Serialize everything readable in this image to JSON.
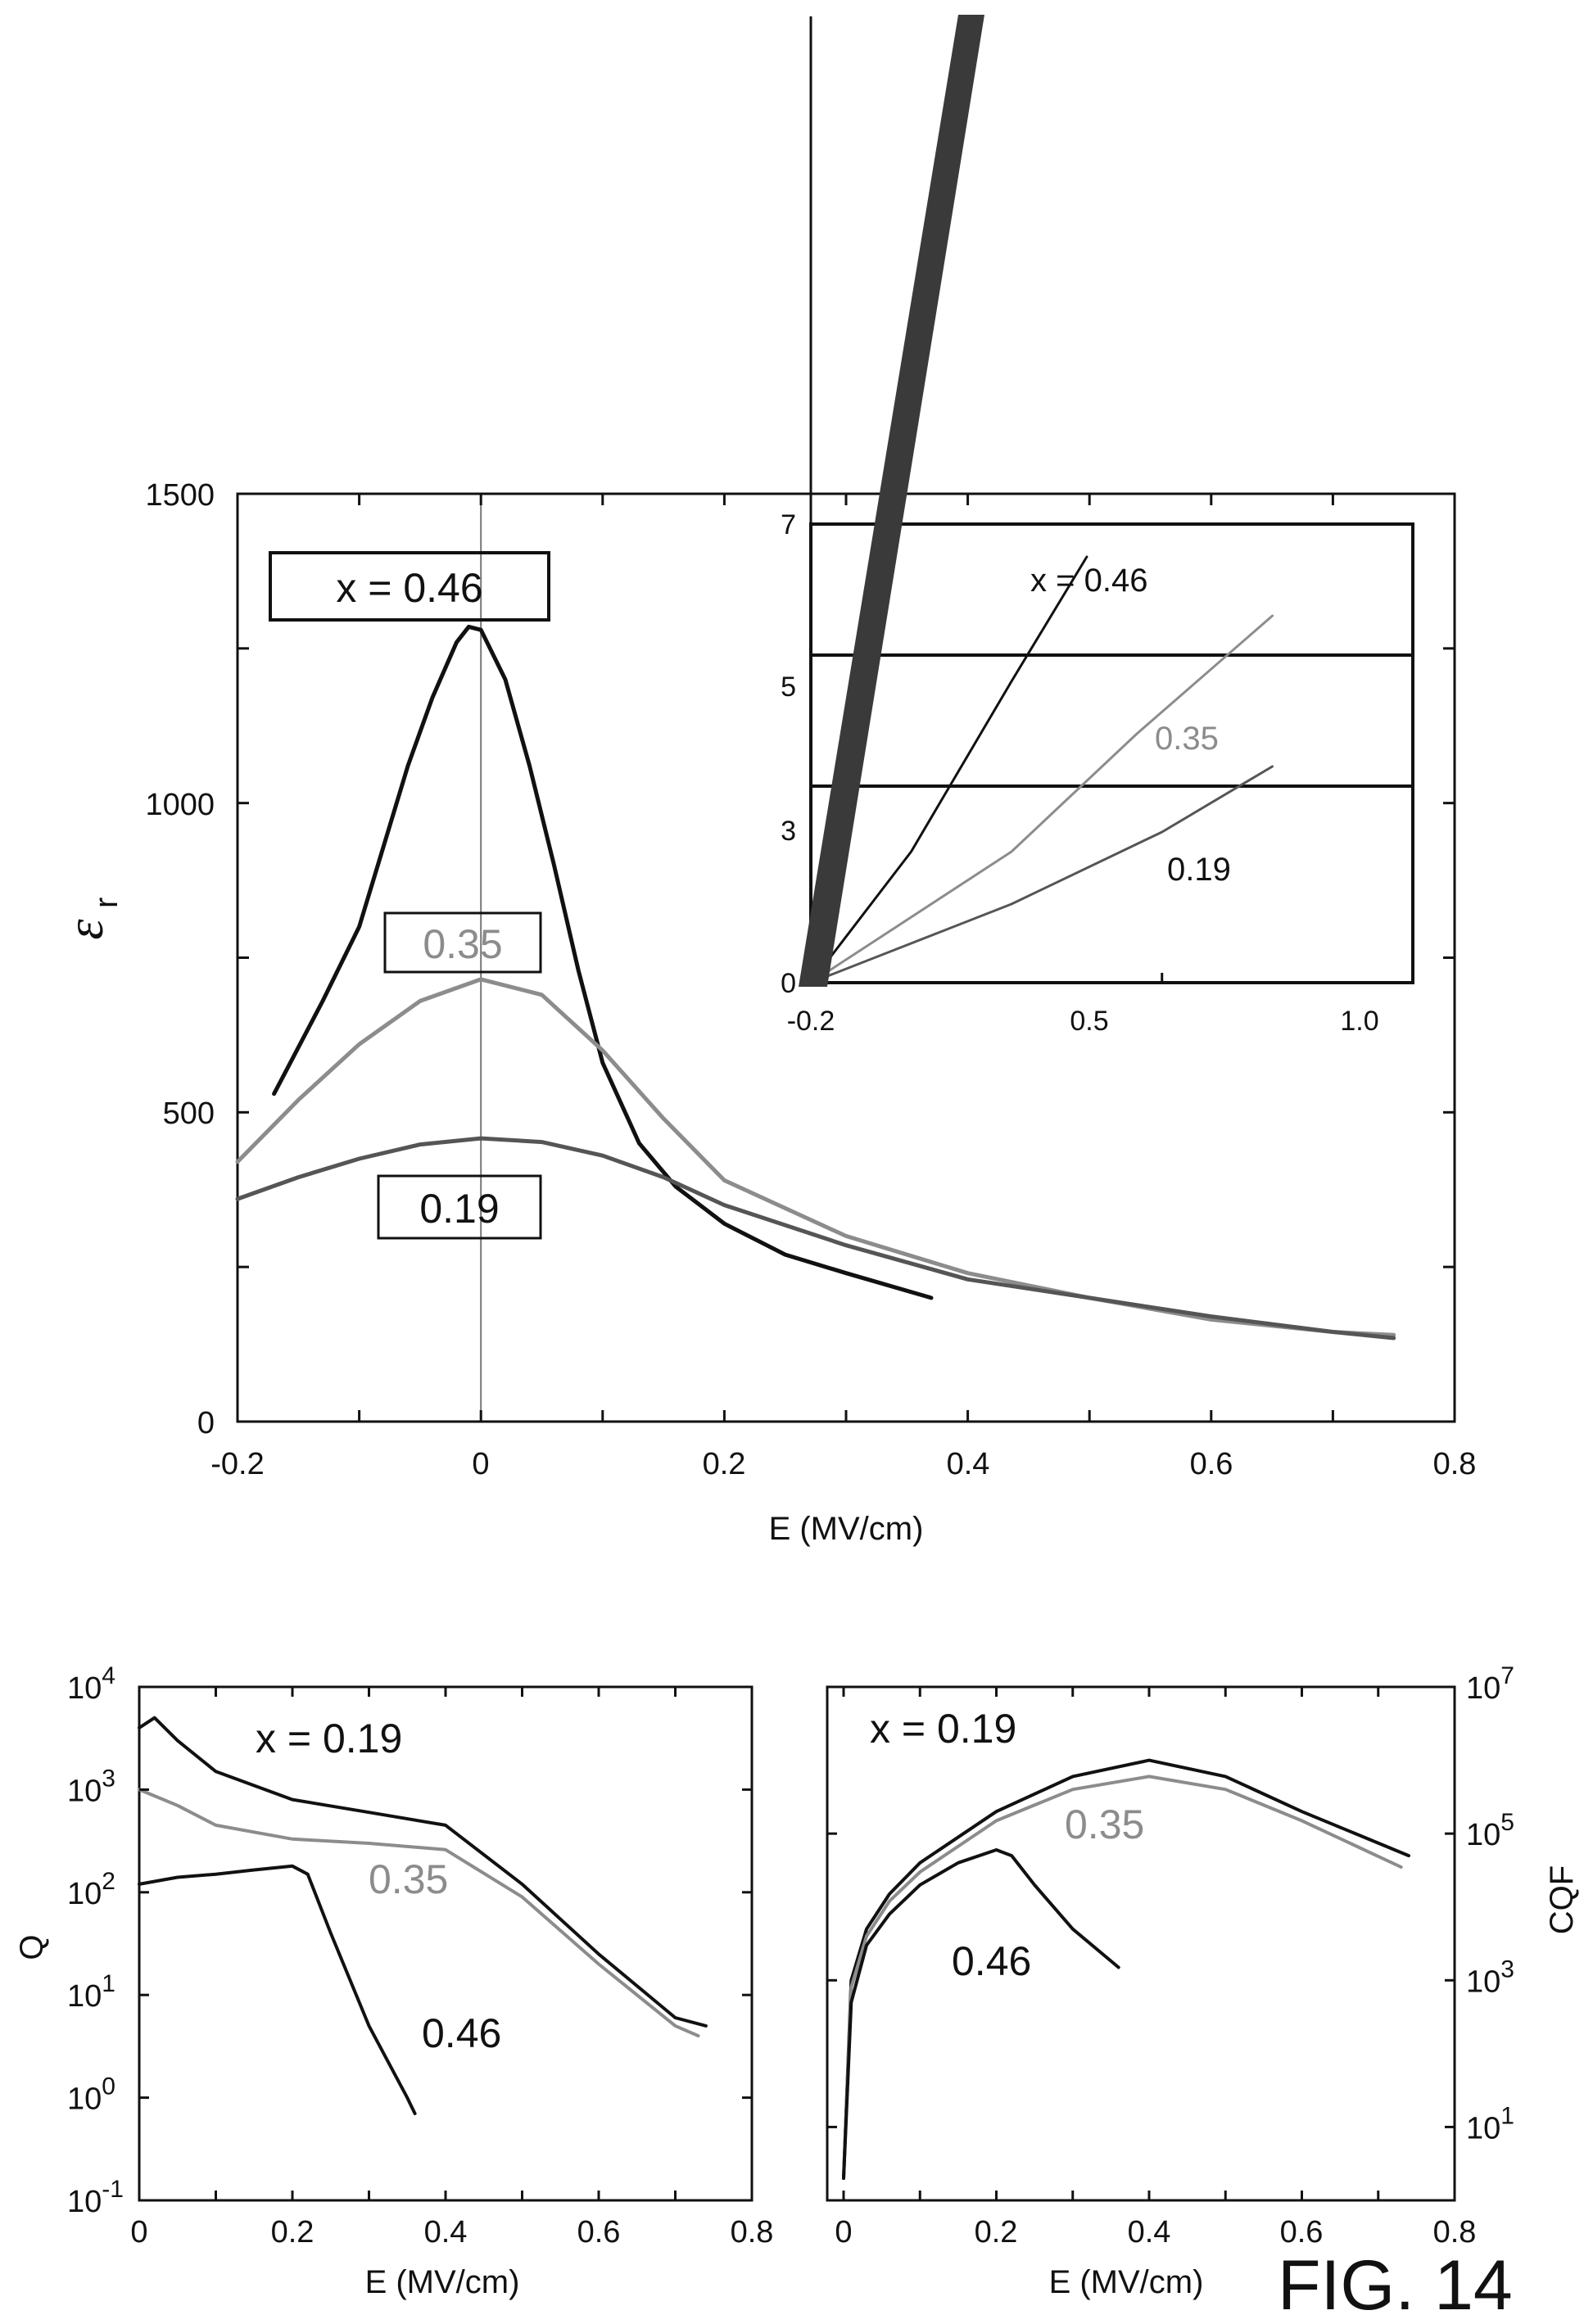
{
  "figure_label": "FIG. 14",
  "colors": {
    "dark": "#111111",
    "light": "#8c8c8c",
    "thick_band": "#3a3a3a",
    "reference": "#555555"
  },
  "chart_data": [
    {
      "id": "main",
      "type": "line",
      "xlabel": "E (MV/cm)",
      "ylabel": "εr",
      "ylabel_main": "ε",
      "ylabel_sub": "r",
      "xlim": [
        -0.2,
        0.8
      ],
      "ylim": [
        0,
        1500
      ],
      "x_ticks": [
        -0.2,
        0,
        0.2,
        0.4,
        0.6,
        0.8
      ],
      "x_tick_labels": [
        "-0.2",
        "0",
        "0.2",
        "0.4",
        "0.6",
        "0.8"
      ],
      "y_ticks": [
        0,
        500,
        1000,
        1500
      ],
      "y_tick_labels": [
        "0",
        "500",
        "1000",
        "1500"
      ],
      "grid": false,
      "reference_line_x": 0,
      "series": [
        {
          "name": "x = 0.46",
          "color": "#111111",
          "x": [
            -0.17,
            -0.13,
            -0.1,
            -0.08,
            -0.06,
            -0.04,
            -0.02,
            -0.01,
            0.0,
            0.02,
            0.04,
            0.06,
            0.08,
            0.1,
            0.13,
            0.16,
            0.2,
            0.25,
            0.3,
            0.37
          ],
          "y": [
            530,
            680,
            800,
            930,
            1060,
            1170,
            1260,
            1285,
            1280,
            1200,
            1060,
            900,
            730,
            580,
            450,
            380,
            320,
            270,
            240,
            200
          ]
        },
        {
          "name": "0.35",
          "color": "#8c8c8c",
          "x": [
            -0.2,
            -0.15,
            -0.1,
            -0.05,
            0.0,
            0.05,
            0.1,
            0.15,
            0.2,
            0.3,
            0.4,
            0.5,
            0.6,
            0.7,
            0.75
          ],
          "y": [
            420,
            520,
            610,
            680,
            715,
            690,
            600,
            490,
            390,
            300,
            240,
            200,
            165,
            145,
            140
          ]
        },
        {
          "name": "0.19",
          "color": "#555555",
          "x": [
            -0.2,
            -0.15,
            -0.1,
            -0.05,
            0.0,
            0.05,
            0.1,
            0.15,
            0.2,
            0.3,
            0.4,
            0.5,
            0.6,
            0.7,
            0.75
          ],
          "y": [
            360,
            395,
            425,
            448,
            458,
            452,
            430,
            395,
            350,
            285,
            230,
            200,
            170,
            145,
            135
          ]
        }
      ],
      "labels": [
        "x = 0.46",
        "0.35",
        "0.19"
      ]
    },
    {
      "id": "inset",
      "type": "line",
      "xlim": [
        -0.2,
        1.0
      ],
      "ylim": [
        0,
        7
      ],
      "x_ticks": [
        -0.2,
        0.5,
        1.0
      ],
      "x_tick_labels": [
        "-0.2",
        "0.5",
        "1.0"
      ],
      "y_ticks": [
        0,
        3,
        5,
        7
      ],
      "y_tick_labels": [
        "0",
        "3",
        "5",
        "7"
      ],
      "hlines": [
        3,
        5
      ],
      "series": [
        {
          "name": "x = 0.46",
          "color": "#111111",
          "x": [
            -0.2,
            0.0,
            0.2,
            0.35
          ],
          "y": [
            0,
            2.0,
            4.6,
            6.5
          ]
        },
        {
          "name": "0.35",
          "color": "#8c8c8c",
          "x": [
            -0.2,
            0.2,
            0.45,
            0.72
          ],
          "y": [
            0,
            2.0,
            3.8,
            5.6
          ]
        },
        {
          "name": "0.19",
          "color": "#555555",
          "x": [
            -0.2,
            0.2,
            0.5,
            0.72
          ],
          "y": [
            0,
            1.2,
            2.3,
            3.3
          ]
        }
      ],
      "labels": [
        "x = 0.46",
        "0.35",
        "0.19"
      ]
    },
    {
      "id": "q-plot",
      "type": "line",
      "xlabel": "E (MV/cm)",
      "ylabel": "Q",
      "xlim": [
        0,
        0.8
      ],
      "ylim_log10": [
        -1,
        4
      ],
      "x_ticks": [
        0,
        0.2,
        0.4,
        0.6,
        0.8
      ],
      "x_tick_labels": [
        "0",
        "0.2",
        "0.4",
        "0.6",
        "0.8"
      ],
      "y_ticks_log10": [
        -1,
        0,
        1,
        2,
        3,
        4
      ],
      "y_tick_labels": [
        "10-1",
        "100",
        "101",
        "102",
        "103",
        "104"
      ],
      "y_tick_bases": [
        "10",
        "10",
        "10",
        "10",
        "10",
        "10"
      ],
      "y_tick_exps": [
        "-1",
        "0",
        "1",
        "2",
        "3",
        "4"
      ],
      "series": [
        {
          "name": "x = 0.19",
          "color": "#111111",
          "x": [
            0.0,
            0.02,
            0.05,
            0.1,
            0.2,
            0.3,
            0.4,
            0.5,
            0.6,
            0.7,
            0.74
          ],
          "y": [
            4000,
            5000,
            3000,
            1500,
            800,
            600,
            450,
            120,
            25,
            6,
            5
          ]
        },
        {
          "name": "0.35",
          "color": "#8c8c8c",
          "x": [
            0.0,
            0.05,
            0.1,
            0.2,
            0.3,
            0.4,
            0.5,
            0.6,
            0.7,
            0.73
          ],
          "y": [
            1000,
            700,
            450,
            330,
            300,
            260,
            90,
            20,
            5,
            4
          ]
        },
        {
          "name": "0.46",
          "color": "#111111",
          "x": [
            0.0,
            0.05,
            0.1,
            0.15,
            0.2,
            0.22,
            0.25,
            0.3,
            0.35,
            0.36
          ],
          "y": [
            120,
            140,
            150,
            165,
            180,
            150,
            40,
            5,
            1,
            0.7
          ]
        }
      ],
      "labels": [
        "x = 0.19",
        "0.35",
        "0.46"
      ]
    },
    {
      "id": "cqf-plot",
      "type": "line",
      "xlabel": "E (MV/cm)",
      "ylabel": "CQF",
      "xlim": [
        0,
        0.8
      ],
      "ylim_log10": [
        0,
        7
      ],
      "x_ticks": [
        0,
        0.2,
        0.4,
        0.6,
        0.8
      ],
      "x_tick_labels": [
        "0",
        "0.2",
        "0.4",
        "0.6",
        "0.8"
      ],
      "y_ticks_log10": [
        1,
        3,
        5,
        7
      ],
      "y_tick_labels": [
        "101",
        "103",
        "105",
        "107"
      ],
      "y_tick_bases": [
        "10",
        "10",
        "10",
        "10"
      ],
      "y_tick_exps": [
        "1",
        "3",
        "5",
        "7"
      ],
      "series": [
        {
          "name": "x = 0.19",
          "color": "#111111",
          "x": [
            0.0,
            0.01,
            0.03,
            0.06,
            0.1,
            0.2,
            0.3,
            0.4,
            0.5,
            0.6,
            0.74
          ],
          "y": [
            2,
            1000,
            5000,
            15000,
            40000,
            200000,
            600000,
            1000000,
            600000,
            200000,
            50000
          ]
        },
        {
          "name": "0.35",
          "color": "#8c8c8c",
          "x": [
            0.0,
            0.01,
            0.03,
            0.06,
            0.1,
            0.2,
            0.3,
            0.4,
            0.5,
            0.6,
            0.73
          ],
          "y": [
            2,
            800,
            4000,
            12000,
            30000,
            150000,
            400000,
            600000,
            400000,
            150000,
            35000
          ]
        },
        {
          "name": "0.46",
          "color": "#111111",
          "x": [
            0.0,
            0.01,
            0.03,
            0.06,
            0.1,
            0.15,
            0.2,
            0.22,
            0.25,
            0.3,
            0.36
          ],
          "y": [
            2,
            500,
            3000,
            8000,
            20000,
            40000,
            60000,
            50000,
            20000,
            5000,
            1500
          ]
        }
      ],
      "labels": [
        "x = 0.19",
        "0.35",
        "0.46"
      ]
    }
  ]
}
